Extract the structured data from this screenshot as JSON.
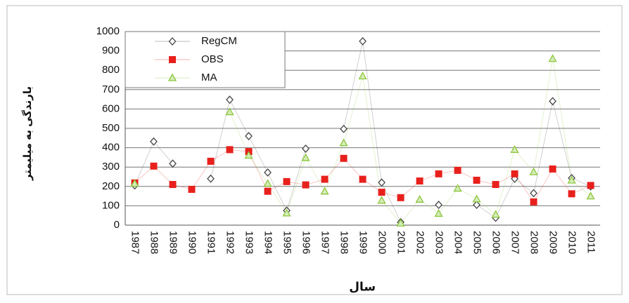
{
  "chart_data": {
    "type": "line",
    "xlabel": "سال",
    "ylabel": "بارندگی به میلیمتر",
    "categories": [
      "1987",
      "1988",
      "1989",
      "1990",
      "1991",
      "1992",
      "1993",
      "1994",
      "1995",
      "1996",
      "1997",
      "1998",
      "1999",
      "2000",
      "2001",
      "2002",
      "2003",
      "2004",
      "2005",
      "2006",
      "2007",
      "2008",
      "2009",
      "2010",
      "2011"
    ],
    "series": [
      {
        "name": "RegCM",
        "color": "#444444",
        "marker": "diamond",
        "values": [
          205,
          432,
          318,
          null,
          240,
          648,
          460,
          272,
          75,
          395,
          null,
          497,
          950,
          220,
          15,
          null,
          105,
          null,
          105,
          38,
          240,
          165,
          640,
          243,
          200
        ]
      },
      {
        "name": "OBS",
        "color": "#e8201c",
        "marker": "square",
        "values": [
          218,
          305,
          210,
          185,
          330,
          390,
          380,
          175,
          225,
          208,
          237,
          345,
          237,
          170,
          142,
          228,
          265,
          283,
          232,
          210,
          265,
          120,
          290,
          162,
          205
        ]
      },
      {
        "name": "MA",
        "color": "#8cc63e",
        "marker": "triangle",
        "values": [
          215,
          null,
          null,
          null,
          null,
          585,
          360,
          215,
          62,
          348,
          175,
          425,
          770,
          128,
          10,
          133,
          60,
          190,
          135,
          55,
          390,
          275,
          860,
          232,
          150
        ]
      }
    ],
    "ylim": [
      0,
      1000
    ],
    "yticks": [
      0,
      100,
      200,
      300,
      400,
      500,
      600,
      700,
      800,
      900,
      1000
    ],
    "grid": true
  }
}
